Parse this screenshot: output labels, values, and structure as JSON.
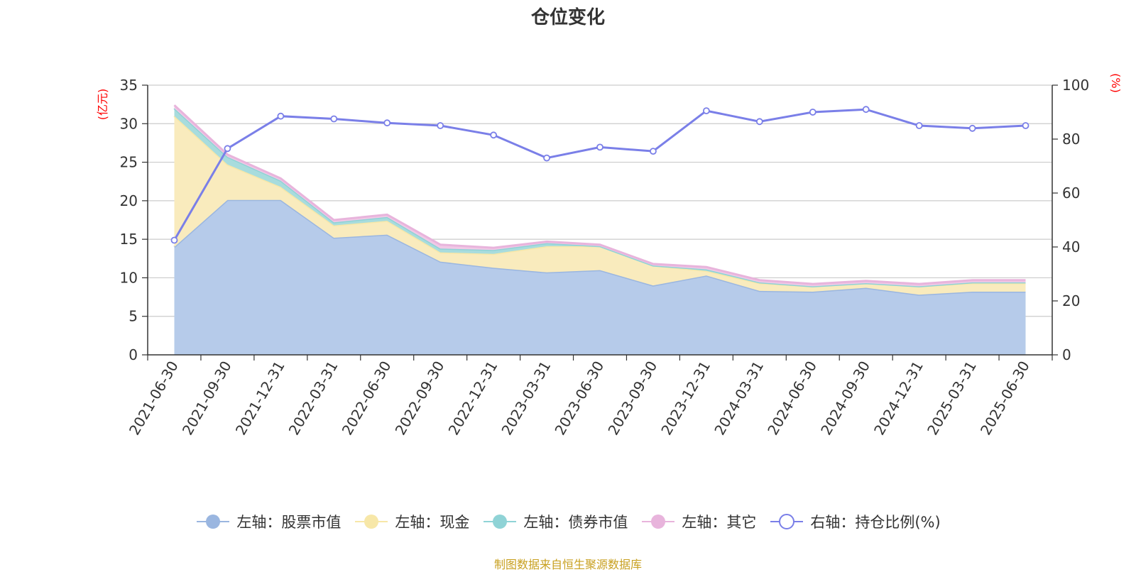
{
  "chart_data": {
    "type": "area",
    "title": "仓位变化",
    "categories": [
      "2021-06-30",
      "2021-09-30",
      "2021-12-31",
      "2022-03-31",
      "2022-06-30",
      "2022-09-30",
      "2022-12-31",
      "2023-03-31",
      "2023-06-30",
      "2023-09-30",
      "2023-12-31",
      "2024-03-31",
      "2024-06-30",
      "2024-09-30",
      "2024-12-31",
      "2025-03-31",
      "2025-06-30"
    ],
    "left_axis": {
      "unit": "亿元",
      "ylim": [
        0,
        35
      ],
      "ticks": [
        "0",
        "5",
        "10",
        "15",
        "20",
        "25",
        "30",
        "35"
      ]
    },
    "right_axis": {
      "unit": "%",
      "ylim": [
        0,
        100
      ],
      "ticks": [
        "0",
        "20",
        "40",
        "60",
        "80",
        "100"
      ]
    },
    "stack_series": [
      {
        "name": "左轴：股票市值",
        "color": "#9ab6e0",
        "fill": "#b6cbea",
        "values": [
          14.0,
          20.1,
          20.1,
          15.2,
          15.6,
          12.1,
          11.3,
          10.7,
          11.0,
          9.0,
          10.3,
          8.3,
          8.2,
          8.7,
          7.8,
          8.2,
          8.2
        ]
      },
      {
        "name": "左轴：现金",
        "color": "#f7e7a8",
        "fill": "#f9ebbd",
        "values": [
          17.0,
          4.6,
          1.7,
          1.6,
          1.8,
          1.2,
          1.8,
          3.4,
          3.1,
          2.6,
          0.6,
          1.0,
          0.7,
          0.6,
          1.1,
          1.1,
          1.1
        ]
      },
      {
        "name": "左轴：债券市值",
        "color": "#8fd3d6",
        "fill": "#a8dcdd",
        "values": [
          1.0,
          1.0,
          0.8,
          0.4,
          0.5,
          0.5,
          0.5,
          0.4,
          0.0,
          0.0,
          0.2,
          0.1,
          0.0,
          0.0,
          0.0,
          0.1,
          0.1
        ]
      },
      {
        "name": "左轴：其它",
        "color": "#e8b4dc",
        "fill": "#f0c9e6",
        "values": [
          0.4,
          0.3,
          0.3,
          0.3,
          0.3,
          0.5,
          0.3,
          0.2,
          0.2,
          0.2,
          0.3,
          0.3,
          0.3,
          0.3,
          0.3,
          0.3,
          0.3
        ]
      }
    ],
    "line_series": {
      "name": "右轴：持仓比例(%)",
      "color": "#7a7fe8",
      "values": [
        42.5,
        76.5,
        88.5,
        87.5,
        86.0,
        85.0,
        81.5,
        73.0,
        77.0,
        75.5,
        90.5,
        86.5,
        90.0,
        91.0,
        85.0,
        84.0,
        85.0
      ]
    },
    "grid": true,
    "legend_position": "bottom"
  },
  "footer": {
    "source": "制图数据来自恒生聚源数据库"
  }
}
